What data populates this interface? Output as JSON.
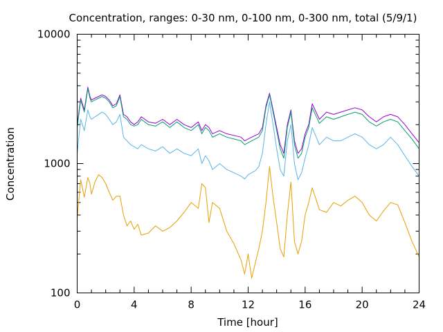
{
  "chart_data": {
    "type": "line",
    "title": "Concentration, ranges: 0-30 nm, 0-100 nm, 0-300 nm, total (5/9/1)",
    "xlabel": "Time [hour]",
    "ylabel": "Concentration",
    "xlim": [
      0,
      24
    ],
    "ylim": [
      100,
      10000
    ],
    "yscale": "log",
    "grid": false,
    "legend": "none",
    "x_ticks": [
      0,
      4,
      8,
      12,
      16,
      20,
      24
    ],
    "x_tick_labels": [
      "0",
      "4",
      "8",
      "12",
      "16",
      "20",
      "24"
    ],
    "x_minor_ticks": [
      1,
      2,
      3,
      5,
      6,
      7,
      9,
      10,
      11,
      13,
      14,
      15,
      17,
      18,
      19,
      21,
      22,
      23
    ],
    "y_ticks": [
      100,
      1000,
      10000
    ],
    "y_tick_labels": [
      "100",
      "1000",
      "10000"
    ],
    "y_minor_ticks": [
      200,
      300,
      400,
      500,
      600,
      700,
      800,
      900,
      2000,
      3000,
      4000,
      5000,
      6000,
      7000,
      8000,
      9000
    ],
    "x": [
      0,
      0.25,
      0.5,
      0.75,
      0.9,
      1.0,
      1.25,
      1.5,
      1.75,
      2.0,
      2.25,
      2.5,
      2.75,
      3.0,
      3.25,
      3.5,
      3.75,
      4.0,
      4.25,
      4.5,
      5.0,
      5.5,
      6.0,
      6.5,
      7.0,
      7.5,
      8.0,
      8.5,
      8.75,
      9.0,
      9.25,
      9.5,
      10.0,
      10.5,
      11.0,
      11.5,
      11.75,
      12.0,
      12.25,
      12.5,
      12.75,
      13.0,
      13.25,
      13.5,
      13.75,
      14.0,
      14.25,
      14.5,
      14.75,
      15.0,
      15.25,
      15.5,
      15.75,
      16.0,
      16.25,
      16.5,
      17.0,
      17.5,
      18.0,
      18.5,
      19.0,
      19.5,
      20.0,
      20.5,
      21.0,
      21.5,
      22.0,
      22.5,
      23.0,
      23.5,
      24.0
    ],
    "series": [
      {
        "color": "#9400d3",
        "values": [
          2000,
          3200,
          2600,
          3900,
          3300,
          3100,
          3200,
          3300,
          3400,
          3300,
          3100,
          2800,
          2900,
          3400,
          2400,
          2300,
          2100,
          2000,
          2100,
          2300,
          2100,
          2050,
          2200,
          2000,
          2200,
          2000,
          1900,
          2100,
          1800,
          2000,
          1900,
          1700,
          1800,
          1700,
          1650,
          1600,
          1500,
          1550,
          1600,
          1650,
          1700,
          1900,
          2800,
          3500,
          2600,
          1900,
          1400,
          1200,
          2000,
          2600,
          1500,
          1200,
          1300,
          1700,
          2000,
          2900,
          2200,
          2500,
          2400,
          2500,
          2600,
          2700,
          2600,
          2300,
          2100,
          2300,
          2400,
          2300,
          2000,
          1700,
          1450
        ]
      },
      {
        "color": "#009e73",
        "values": [
          1900,
          3100,
          2500,
          3800,
          3200,
          3000,
          3100,
          3200,
          3300,
          3200,
          3000,
          2700,
          2800,
          3300,
          2300,
          2200,
          2000,
          1950,
          2000,
          2200,
          2000,
          1950,
          2100,
          1900,
          2100,
          1900,
          1800,
          2000,
          1700,
          1900,
          1800,
          1600,
          1700,
          1600,
          1550,
          1500,
          1400,
          1450,
          1500,
          1550,
          1600,
          1800,
          2700,
          3400,
          2500,
          1800,
          1300,
          1100,
          1900,
          2500,
          1400,
          1100,
          1200,
          1600,
          1900,
          2700,
          2050,
          2300,
          2200,
          2300,
          2400,
          2500,
          2400,
          2100,
          1950,
          2100,
          2200,
          2100,
          1800,
          1550,
          1300
        ]
      },
      {
        "color": "#56b4e9",
        "values": [
          1200,
          2200,
          1800,
          2600,
          2300,
          2200,
          2300,
          2400,
          2500,
          2400,
          2200,
          2000,
          2100,
          2400,
          1600,
          1500,
          1400,
          1350,
          1300,
          1400,
          1300,
          1250,
          1350,
          1200,
          1300,
          1200,
          1150,
          1300,
          1000,
          1150,
          1050,
          900,
          1000,
          900,
          850,
          800,
          760,
          820,
          850,
          880,
          950,
          1200,
          2000,
          3000,
          2000,
          1300,
          900,
          800,
          1500,
          2000,
          1000,
          750,
          850,
          1100,
          1400,
          1900,
          1400,
          1600,
          1500,
          1500,
          1600,
          1700,
          1600,
          1400,
          1300,
          1400,
          1600,
          1400,
          1150,
          950,
          800
        ]
      },
      {
        "color": "#e69f00",
        "values": [
          380,
          750,
          550,
          780,
          700,
          580,
          720,
          820,
          780,
          700,
          600,
          520,
          560,
          560,
          400,
          330,
          360,
          310,
          340,
          280,
          290,
          330,
          300,
          320,
          360,
          420,
          500,
          450,
          700,
          650,
          350,
          500,
          450,
          300,
          240,
          180,
          140,
          200,
          130,
          170,
          220,
          300,
          500,
          950,
          550,
          350,
          220,
          190,
          400,
          720,
          250,
          200,
          250,
          400,
          500,
          650,
          440,
          420,
          500,
          470,
          520,
          560,
          500,
          400,
          360,
          430,
          500,
          480,
          350,
          250,
          190
        ]
      }
    ]
  }
}
